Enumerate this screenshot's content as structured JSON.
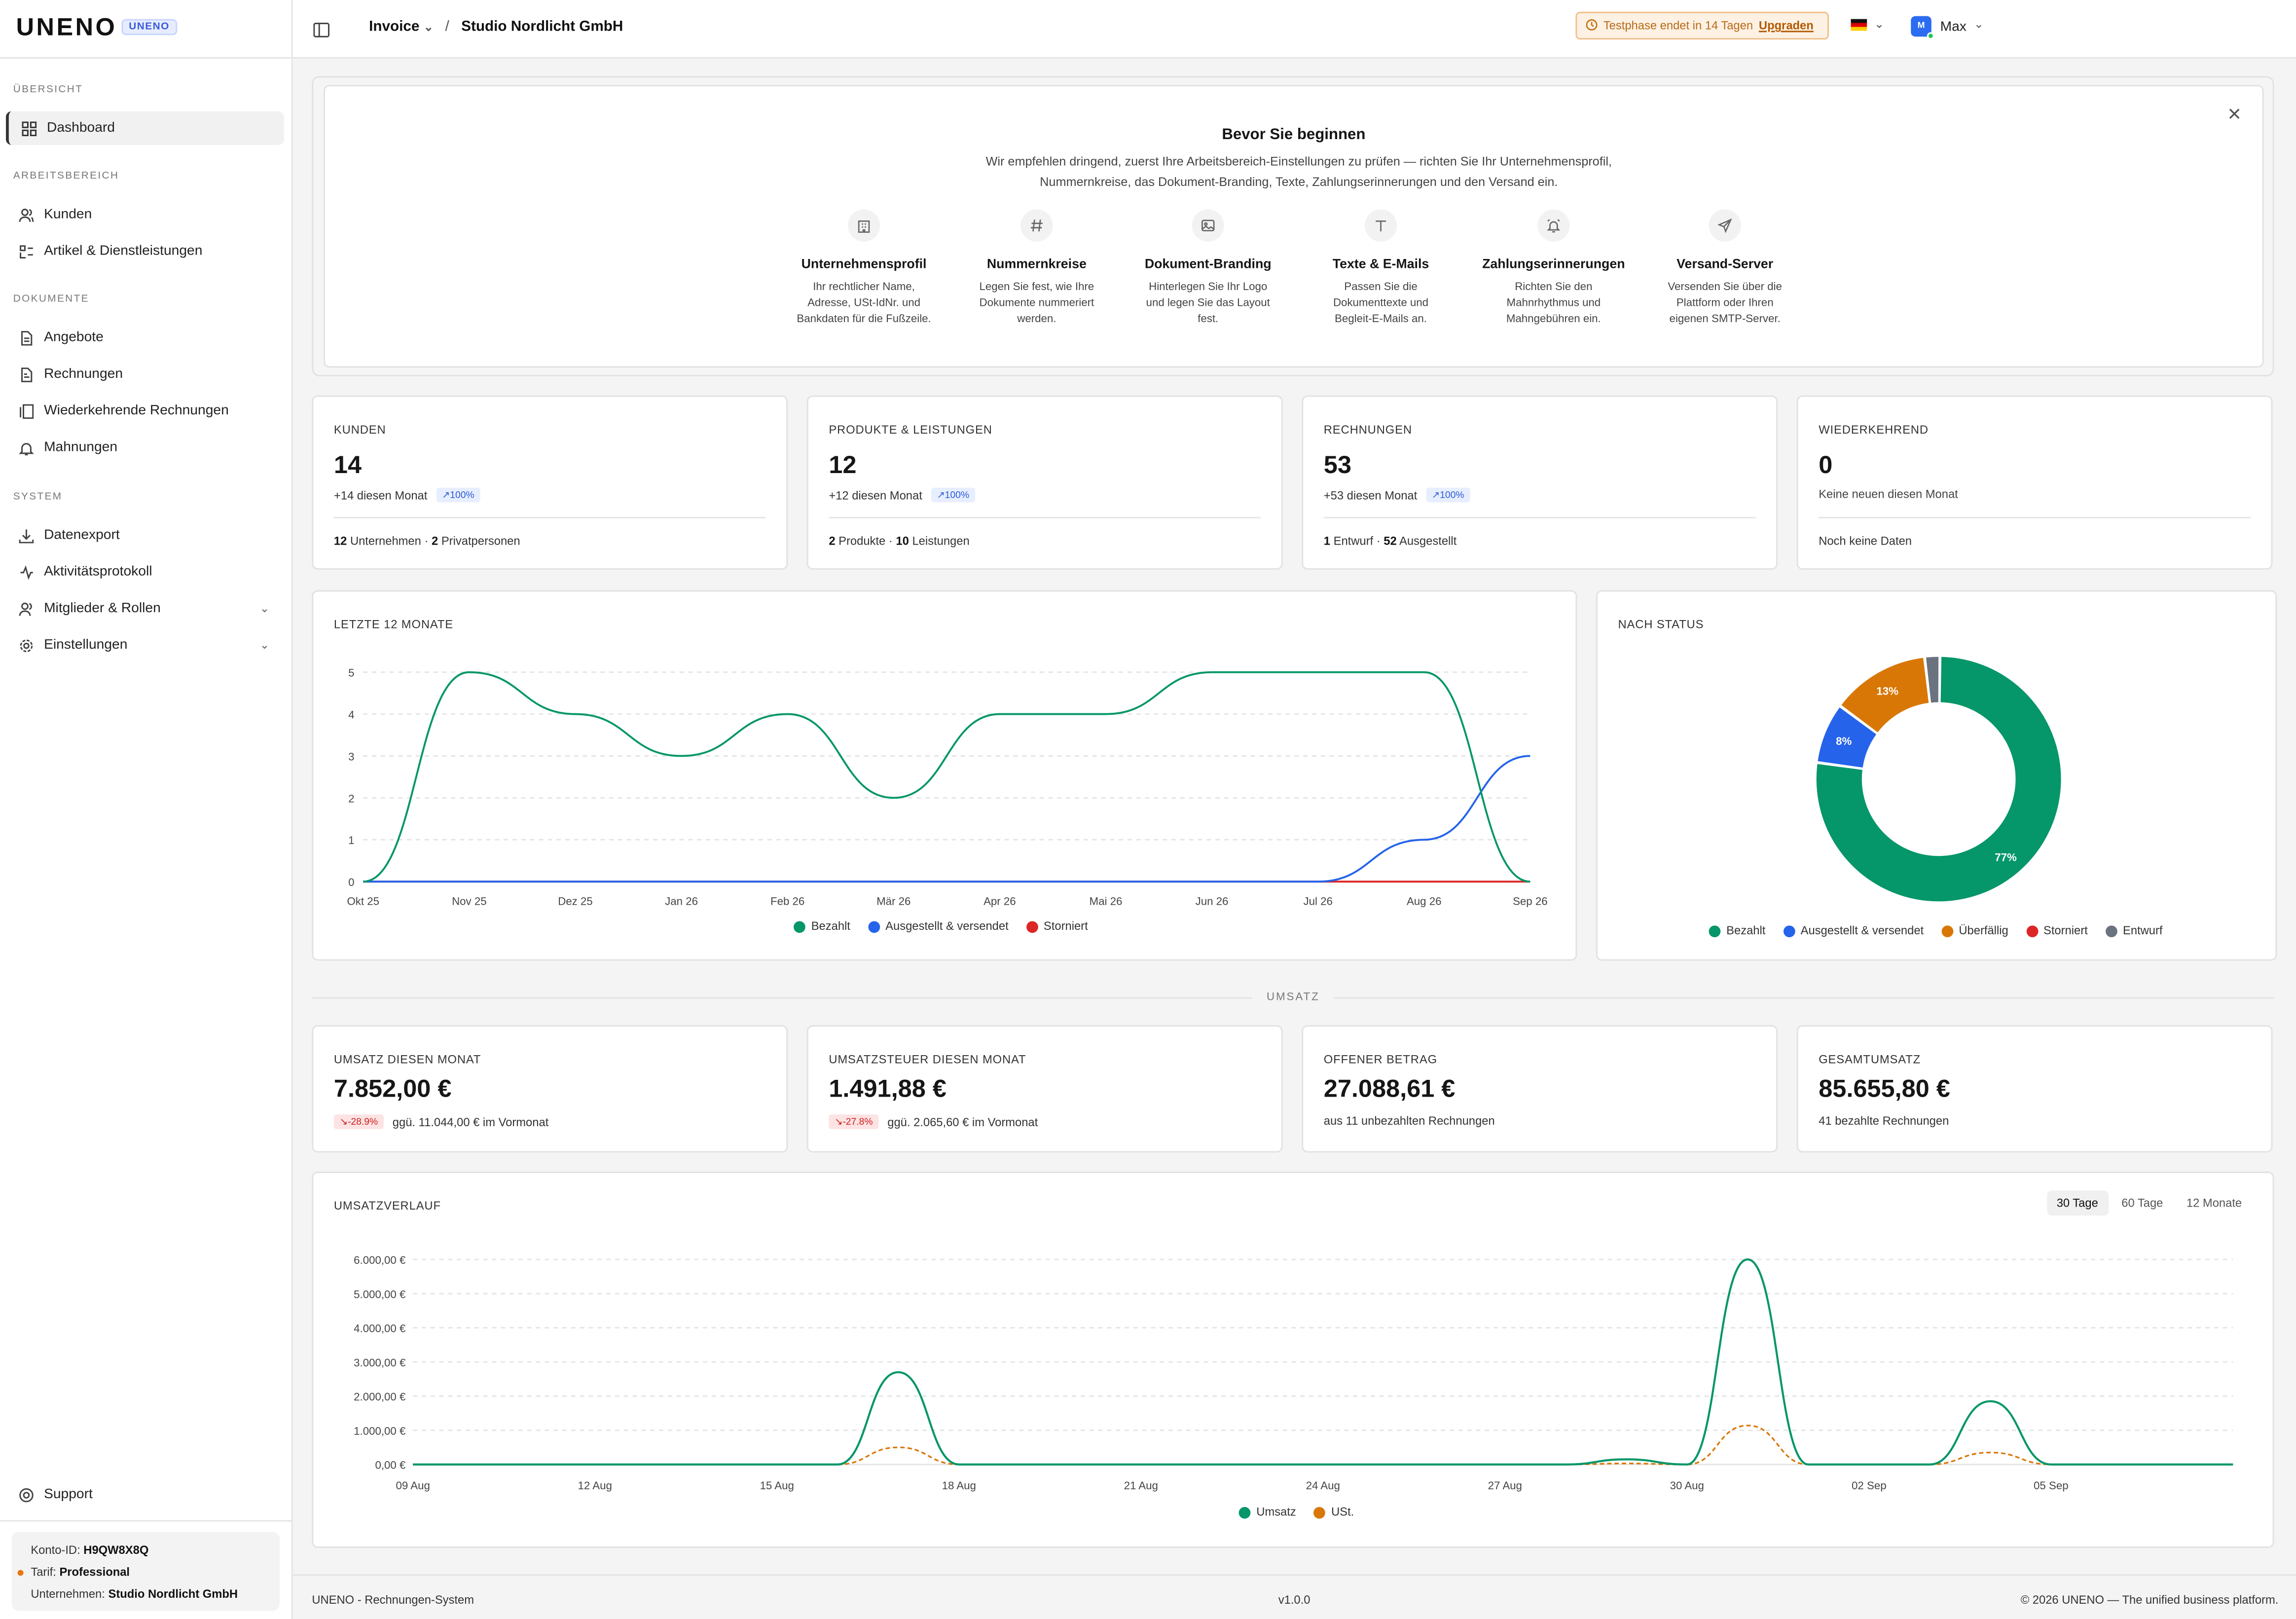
{
  "app": {
    "logo": "UNENO",
    "badge": "UNENO"
  },
  "sidebar": {
    "sections": [
      {
        "label": "ÜBERSICHT"
      },
      {
        "label": "ARBEITSBEREICH"
      },
      {
        "label": "DOKUMENTE"
      },
      {
        "label": "SYSTEM"
      }
    ],
    "items": [
      {
        "label": "Dashboard",
        "icon": "dashboard-icon"
      },
      {
        "label": "Kunden",
        "icon": "users-icon"
      },
      {
        "label": "Artikel & Dienstleistungen",
        "icon": "package-icon"
      },
      {
        "label": "Angebote",
        "icon": "document-icon"
      },
      {
        "label": "Rechnungen",
        "icon": "invoice-icon"
      },
      {
        "label": "Wiederkehrende Rechnungen",
        "icon": "recurring-icon"
      },
      {
        "label": "Mahnungen",
        "icon": "bell-icon"
      },
      {
        "label": "Datenexport",
        "icon": "download-icon"
      },
      {
        "label": "Aktivitätsprotokoll",
        "icon": "log-icon"
      },
      {
        "label": "Mitglieder & Rollen",
        "icon": "members-icon"
      },
      {
        "label": "Einstellungen",
        "icon": "gear-icon"
      }
    ],
    "support": "Support",
    "account": {
      "id_label": "Konto-ID:",
      "id": "H9QW8X8Q",
      "plan_label": "Tarif:",
      "plan": "Professional",
      "company_label": "Unternehmen:",
      "company": "Studio Nordlicht GmbH"
    }
  },
  "header": {
    "module": "Invoice",
    "separator": "/",
    "company": "Studio Nordlicht GmbH",
    "trial_text": "Testphase endet in 14 Tagen",
    "upgrade": "Upgraden",
    "user_initial": "M",
    "user_name": "Max"
  },
  "onboarding": {
    "title": "Bevor Sie beginnen",
    "description": "Wir empfehlen dringend, zuerst Ihre Arbeitsbereich-Einstellungen zu prüfen — richten Sie Ihr Unternehmensprofil, Nummernkreise, das Dokument-Branding, Texte, Zahlungserinnerungen und den Versand ein.",
    "steps": [
      {
        "title": "Unternehmensprofil",
        "text": "Ihr rechtlicher Name, Adresse, USt-IdNr. und Bankdaten für die Fußzeile.",
        "icon": "building-icon"
      },
      {
        "title": "Nummernkreise",
        "text": "Legen Sie fest, wie Ihre Dokumente nummeriert werden.",
        "icon": "hash-icon"
      },
      {
        "title": "Dokument-Branding",
        "text": "Hinterlegen Sie Ihr Logo und legen Sie das Layout fest.",
        "icon": "image-icon"
      },
      {
        "title": "Texte & E-Mails",
        "text": "Passen Sie die Dokumenttexte und Begleit-E-Mails an.",
        "icon": "text-icon"
      },
      {
        "title": "Zahlungserinnerungen",
        "text": "Richten Sie den Mahnrhythmus und Mahngebühren ein.",
        "icon": "alarm-icon"
      },
      {
        "title": "Versand-Server",
        "text": "Versenden Sie über die Plattform oder Ihren eigenen SMTP-Server.",
        "icon": "send-icon"
      }
    ]
  },
  "stats": [
    {
      "label": "KUNDEN",
      "value": "14",
      "sub": "+14 diesen Monat",
      "badge": "100%",
      "f1n": "12",
      "f1": "Unternehmen ·",
      "f2n": "2",
      "f2": "Privatpersonen"
    },
    {
      "label": "PRODUKTE & LEISTUNGEN",
      "value": "12",
      "sub": "+12 diesen Monat",
      "badge": "100%",
      "f1n": "2",
      "f1": "Produkte ·",
      "f2n": "10",
      "f2": "Leistungen"
    },
    {
      "label": "RECHNUNGEN",
      "value": "53",
      "sub": "+53 diesen Monat",
      "badge": "100%",
      "f1n": "1",
      "f1": "Entwurf ·",
      "f2n": "52",
      "f2": "Ausgestellt"
    },
    {
      "label": "WIEDERKEHREND",
      "value": "0",
      "sub": "Keine neuen diesen Monat",
      "foot": "Noch keine Daten"
    }
  ],
  "revenue_label": "UMSATZ",
  "revenue_stats": [
    {
      "label": "UMSATZ DIESEN MONAT",
      "value": "7.852,00 €",
      "badge": "-28.9%",
      "sub": "ggü. 11.044,00 € im Vormonat"
    },
    {
      "label": "UMSATZSTEUER DIESEN MONAT",
      "value": "1.491,88 €",
      "badge": "-27.8%",
      "sub": "ggü. 2.065,60 € im Vormonat"
    },
    {
      "label": "OFFENER BETRAG",
      "value": "27.088,61 €",
      "sub": "aus 11 unbezahlten Rechnungen"
    },
    {
      "label": "GESAMTUMSATZ",
      "value": "85.655,80 €",
      "sub": "41 bezahlte Rechnungen"
    }
  ],
  "revenue_tabs": [
    "30 Tage",
    "60 Tage",
    "12 Monate"
  ],
  "footer": {
    "left": "UNENO - Rechnungen-System",
    "center": "v1.0.0",
    "right": "© 2026 UNENO — The unified business platform."
  },
  "chart_data": [
    {
      "type": "line",
      "title": "LETZTE 12 MONATE",
      "x": [
        "Okt 25",
        "Nov 25",
        "Dez 25",
        "Jan 26",
        "Feb 26",
        "Mär 26",
        "Apr 26",
        "Mai 26",
        "Jun 26",
        "Jul 26",
        "Aug 26",
        "Sep 26"
      ],
      "ylim": [
        0,
        5
      ],
      "yticks": [
        0,
        1,
        2,
        3,
        4,
        5
      ],
      "grid": true,
      "legend": "bottom",
      "series": [
        {
          "name": "Bezahlt",
          "color": "#059669",
          "values": [
            0,
            5,
            4,
            3,
            4,
            2,
            4,
            4,
            5,
            5,
            5,
            0
          ]
        },
        {
          "name": "Ausgestellt & versendet",
          "color": "#2563eb",
          "values": [
            0,
            0,
            0,
            0,
            0,
            0,
            0,
            0,
            0,
            0,
            1,
            3
          ]
        },
        {
          "name": "Storniert",
          "color": "#dc2626",
          "values": [
            0,
            0,
            0,
            0,
            0,
            0,
            0,
            0,
            0,
            0,
            0,
            0
          ]
        }
      ]
    },
    {
      "type": "pie",
      "title": "NACH STATUS",
      "donut": true,
      "legend": "bottom",
      "slices": [
        {
          "name": "Bezahlt",
          "value": 77,
          "label": "77%",
          "color": "#059669"
        },
        {
          "name": "Ausgestellt & versendet",
          "value": 8,
          "label": "8%",
          "color": "#2563eb"
        },
        {
          "name": "Überfällig",
          "value": 13,
          "label": "13%",
          "color": "#d97706"
        },
        {
          "name": "Storniert",
          "value": 0,
          "label": "",
          "color": "#dc2626"
        },
        {
          "name": "Entwurf",
          "value": 2,
          "label": "",
          "color": "#6b7280"
        }
      ]
    },
    {
      "type": "line",
      "title": "UMSATZVERLAUF",
      "xticks": [
        "09 Aug",
        "12 Aug",
        "15 Aug",
        "18 Aug",
        "21 Aug",
        "24 Aug",
        "27 Aug",
        "30 Aug",
        "02 Sep",
        "05 Sep"
      ],
      "x_start_day": 9,
      "ylim": [
        0,
        6000
      ],
      "yticks": [
        "0,00 €",
        "1.000,00 €",
        "2.000,00 €",
        "3.000,00 €",
        "4.000,00 €",
        "5.000,00 €",
        "6.000,00 €"
      ],
      "grid": true,
      "legend": "bottom",
      "series": [
        {
          "name": "Umsatz",
          "color": "#059669",
          "dashed": false,
          "values": [
            0,
            0,
            0,
            0,
            0,
            0,
            0,
            0,
            2700,
            0,
            0,
            0,
            0,
            0,
            0,
            0,
            0,
            0,
            0,
            0,
            150,
            0,
            6000,
            0,
            0,
            0,
            1850,
            0,
            0,
            0,
            0
          ]
        },
        {
          "name": "USt.",
          "color": "#d97706",
          "dashed": true,
          "values": [
            0,
            0,
            0,
            0,
            0,
            0,
            0,
            0,
            500,
            0,
            0,
            0,
            0,
            0,
            0,
            0,
            0,
            0,
            0,
            0,
            30,
            0,
            1140,
            0,
            0,
            0,
            350,
            0,
            0,
            0,
            0
          ]
        }
      ]
    }
  ]
}
